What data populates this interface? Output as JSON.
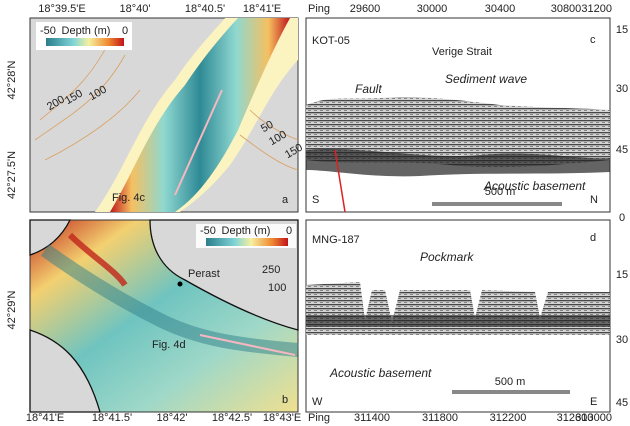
{
  "panel_a": {
    "label": "a",
    "top_axis": [
      "18°39.5'E",
      "18°40'",
      "18°40.5'",
      "18°41'E"
    ],
    "left_axis": [
      "42°28'N",
      "42°27.5'N"
    ],
    "colorbar": {
      "min": -50,
      "title": "Depth (m)",
      "max": 0
    },
    "contours": [
      200,
      150,
      100,
      50,
      100,
      150
    ],
    "annotation": "Fig. 4c"
  },
  "panel_b": {
    "label": "b",
    "bottom_axis": [
      "18°41'E",
      "18°41.5'",
      "18°42'",
      "18°42.5'",
      "18°43'E"
    ],
    "left_axis": [
      "42°29'N"
    ],
    "colorbar": {
      "min": -50,
      "title": "Depth (m)",
      "max": 0
    },
    "contours": [
      250,
      100
    ],
    "place": "Perast",
    "annotation": "Fig. 4d"
  },
  "panel_c": {
    "label": "c",
    "profile": "KOT-05",
    "location": "Verige Strait",
    "ping_label": "Ping",
    "pings": [
      29600,
      30000,
      30400,
      30800,
      31200
    ],
    "depths": [
      15,
      30,
      45
    ],
    "annotations": [
      "Fault",
      "Sediment wave",
      "Acoustic basement"
    ],
    "start": "S",
    "end": "N",
    "scale_bar": "500 m"
  },
  "panel_d": {
    "label": "d",
    "profile": "MNG-187",
    "ping_label": "Ping",
    "pings": [
      311400,
      311800,
      312200,
      312600,
      313000
    ],
    "depths": [
      0,
      15,
      30,
      45
    ],
    "annotations": [
      "Pockmark",
      "Acoustic basement"
    ],
    "start": "W",
    "end": "E",
    "scale_bar": "500 m"
  }
}
